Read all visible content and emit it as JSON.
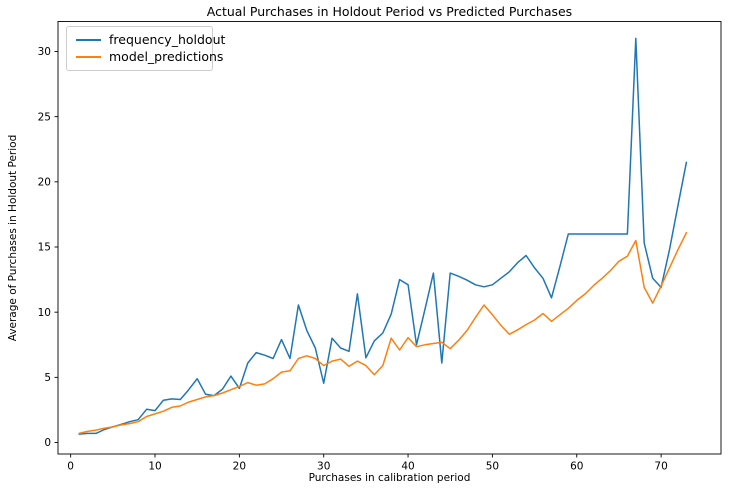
{
  "chart_data": {
    "type": "line",
    "title": "Actual Purchases in Holdout Period vs Predicted Purchases",
    "xlabel": "Purchases in calibration period",
    "ylabel": "Average of Purchases in Holdout Period",
    "legend_position": "upper left",
    "grid": false,
    "xticks": [
      0,
      10,
      20,
      30,
      40,
      50,
      60,
      70
    ],
    "yticks": [
      0,
      5,
      10,
      15,
      20,
      25,
      30
    ],
    "xlim": [
      -1.5,
      77.1
    ],
    "ylim": [
      -0.88,
      32.3
    ],
    "x": [
      1,
      2,
      3,
      4,
      5,
      6,
      7,
      8,
      9,
      10,
      11,
      12,
      13,
      14,
      15,
      16,
      17,
      18,
      19,
      20,
      21,
      22,
      23,
      24,
      25,
      26,
      27,
      28,
      29,
      30,
      31,
      32,
      33,
      34,
      35,
      36,
      37,
      38,
      39,
      40,
      41,
      42,
      43,
      44,
      45,
      46,
      47,
      48,
      49,
      50,
      51,
      52,
      53,
      54,
      55,
      56,
      57,
      58,
      59,
      60,
      61,
      62,
      63,
      64,
      65,
      66,
      67,
      68,
      69,
      70,
      71,
      72,
      73
    ],
    "series": [
      {
        "name": "frequency_holdout",
        "color": "#1f77b4",
        "values": [
          0.65,
          0.7,
          0.7,
          1.0,
          1.2,
          1.4,
          1.6,
          1.75,
          2.55,
          2.45,
          3.25,
          3.35,
          3.3,
          4.05,
          4.9,
          3.7,
          3.6,
          4.1,
          5.1,
          4.15,
          6.1,
          6.9,
          6.7,
          6.45,
          7.9,
          6.45,
          10.55,
          8.6,
          7.25,
          4.55,
          8.0,
          7.25,
          7.0,
          11.4,
          6.5,
          7.8,
          8.4,
          9.85,
          12.5,
          12.1,
          7.5,
          10.2,
          13.0,
          6.1,
          13.0,
          12.75,
          12.45,
          12.1,
          11.95,
          12.1,
          12.6,
          13.1,
          13.8,
          14.35,
          13.4,
          12.6,
          11.1,
          13.5,
          16.0,
          16.0,
          16.0,
          16.0,
          16.0,
          16.0,
          16.0,
          16.0,
          31.0,
          15.3,
          12.6,
          11.9,
          14.8,
          18.2,
          21.5
        ]
      },
      {
        "name": "model_predictions",
        "color": "#ff7f0e",
        "values": [
          0.7,
          0.85,
          0.95,
          1.1,
          1.2,
          1.35,
          1.45,
          1.6,
          2.0,
          2.2,
          2.4,
          2.7,
          2.8,
          3.1,
          3.3,
          3.5,
          3.6,
          3.8,
          4.05,
          4.3,
          4.6,
          4.4,
          4.5,
          4.9,
          5.4,
          5.5,
          6.45,
          6.65,
          6.45,
          5.9,
          6.25,
          6.4,
          5.85,
          6.25,
          5.9,
          5.2,
          5.9,
          8.0,
          7.1,
          8.05,
          7.35,
          7.5,
          7.6,
          7.7,
          7.2,
          7.85,
          8.6,
          9.6,
          10.55,
          9.8,
          9.0,
          8.3,
          8.65,
          9.05,
          9.4,
          9.9,
          9.3,
          9.8,
          10.3,
          10.9,
          11.4,
          12.05,
          12.6,
          13.2,
          13.9,
          14.3,
          15.5,
          11.9,
          10.7,
          12.0,
          13.4,
          14.8,
          16.1
        ]
      }
    ],
    "axis_color": "#000000",
    "background_color": "#ffffff"
  }
}
